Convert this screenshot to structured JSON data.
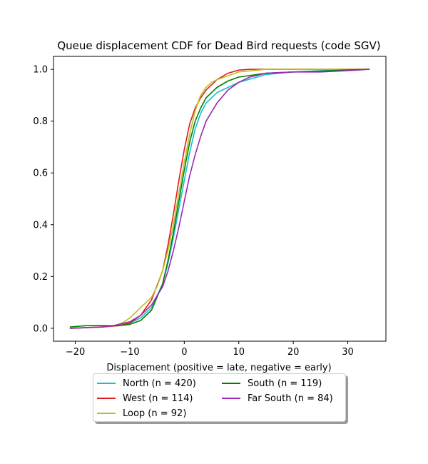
{
  "chart_data": {
    "type": "line",
    "title": "Queue displacement CDF for Dead Bird  requests (code SGV)",
    "xlabel": "Displacement (positive = late, negative = early)",
    "ylabel": "",
    "xlim": [
      -24,
      37
    ],
    "ylim": [
      -0.05,
      1.05
    ],
    "xticks": [
      -20,
      -10,
      0,
      10,
      20,
      30
    ],
    "xtick_labels": [
      "−20",
      "−10",
      "0",
      "10",
      "20",
      "30"
    ],
    "yticks": [
      0.0,
      0.2,
      0.4,
      0.6,
      0.8,
      1.0
    ],
    "ytick_labels": [
      "0.0",
      "0.2",
      "0.4",
      "0.6",
      "0.8",
      "1.0"
    ],
    "grid": false,
    "legend_placement": "below plot, two columns",
    "series": [
      {
        "name": "North (n = 420)",
        "color": "#17becf",
        "x": [
          -21,
          -15,
          -12,
          -10,
          -8,
          -6,
          -4,
          -3,
          -2,
          -1,
          0,
          1,
          2,
          3,
          4,
          6,
          8,
          10,
          15,
          20,
          25,
          34
        ],
        "y": [
          0.0,
          0.005,
          0.01,
          0.02,
          0.04,
          0.08,
          0.17,
          0.25,
          0.35,
          0.46,
          0.57,
          0.68,
          0.77,
          0.83,
          0.87,
          0.91,
          0.93,
          0.95,
          0.98,
          0.99,
          0.995,
          1.0
        ]
      },
      {
        "name": "West (n = 114)",
        "color": "#e31a1c",
        "x": [
          -21,
          -15,
          -12,
          -10,
          -8,
          -6,
          -4,
          -3,
          -2,
          -1,
          0,
          1,
          2,
          3,
          4,
          6,
          8,
          10,
          12,
          15,
          20,
          34
        ],
        "y": [
          0.0,
          0.005,
          0.01,
          0.02,
          0.05,
          0.11,
          0.22,
          0.32,
          0.44,
          0.57,
          0.69,
          0.79,
          0.85,
          0.89,
          0.92,
          0.96,
          0.985,
          0.997,
          1.0,
          1.0,
          1.0,
          1.0
        ]
      },
      {
        "name": "Loop (n = 92)",
        "color": "#bcbd22",
        "x": [
          -21,
          -15,
          -13,
          -12,
          -11,
          -10,
          -9,
          -8,
          -7,
          -6,
          -5,
          -4,
          -3,
          -2,
          -1,
          0,
          1,
          2,
          3,
          4,
          5,
          6,
          8,
          10,
          15,
          20,
          34
        ],
        "y": [
          0.0,
          0.005,
          0.01,
          0.015,
          0.025,
          0.04,
          0.06,
          0.08,
          0.1,
          0.12,
          0.16,
          0.22,
          0.3,
          0.4,
          0.52,
          0.64,
          0.75,
          0.84,
          0.9,
          0.93,
          0.95,
          0.96,
          0.975,
          0.99,
          1.0,
          1.0,
          1.0
        ]
      },
      {
        "name": "South (n = 119)",
        "color": "#008000",
        "x": [
          -21,
          -18,
          -15,
          -12,
          -10,
          -8,
          -6,
          -4,
          -3,
          -2,
          -1,
          0,
          1,
          2,
          3,
          4,
          6,
          8,
          10,
          15,
          20,
          25,
          30,
          34
        ],
        "y": [
          0.005,
          0.01,
          0.01,
          0.01,
          0.015,
          0.03,
          0.07,
          0.17,
          0.26,
          0.37,
          0.49,
          0.61,
          0.72,
          0.8,
          0.85,
          0.89,
          0.93,
          0.955,
          0.97,
          0.985,
          0.99,
          0.993,
          0.998,
          1.0
        ]
      },
      {
        "name": "Far South (n = 84)",
        "color": "#9c27b0",
        "x": [
          -21,
          -15,
          -13,
          -12,
          -10,
          -8,
          -6,
          -4,
          -3,
          -2,
          -1,
          0,
          1,
          2,
          3,
          4,
          6,
          8,
          10,
          12,
          15,
          20,
          25,
          30,
          34
        ],
        "y": [
          0.0,
          0.005,
          0.01,
          0.015,
          0.025,
          0.05,
          0.09,
          0.16,
          0.22,
          0.3,
          0.39,
          0.49,
          0.59,
          0.67,
          0.74,
          0.8,
          0.87,
          0.92,
          0.95,
          0.97,
          0.985,
          0.99,
          0.99,
          0.995,
          1.0
        ]
      }
    ]
  }
}
